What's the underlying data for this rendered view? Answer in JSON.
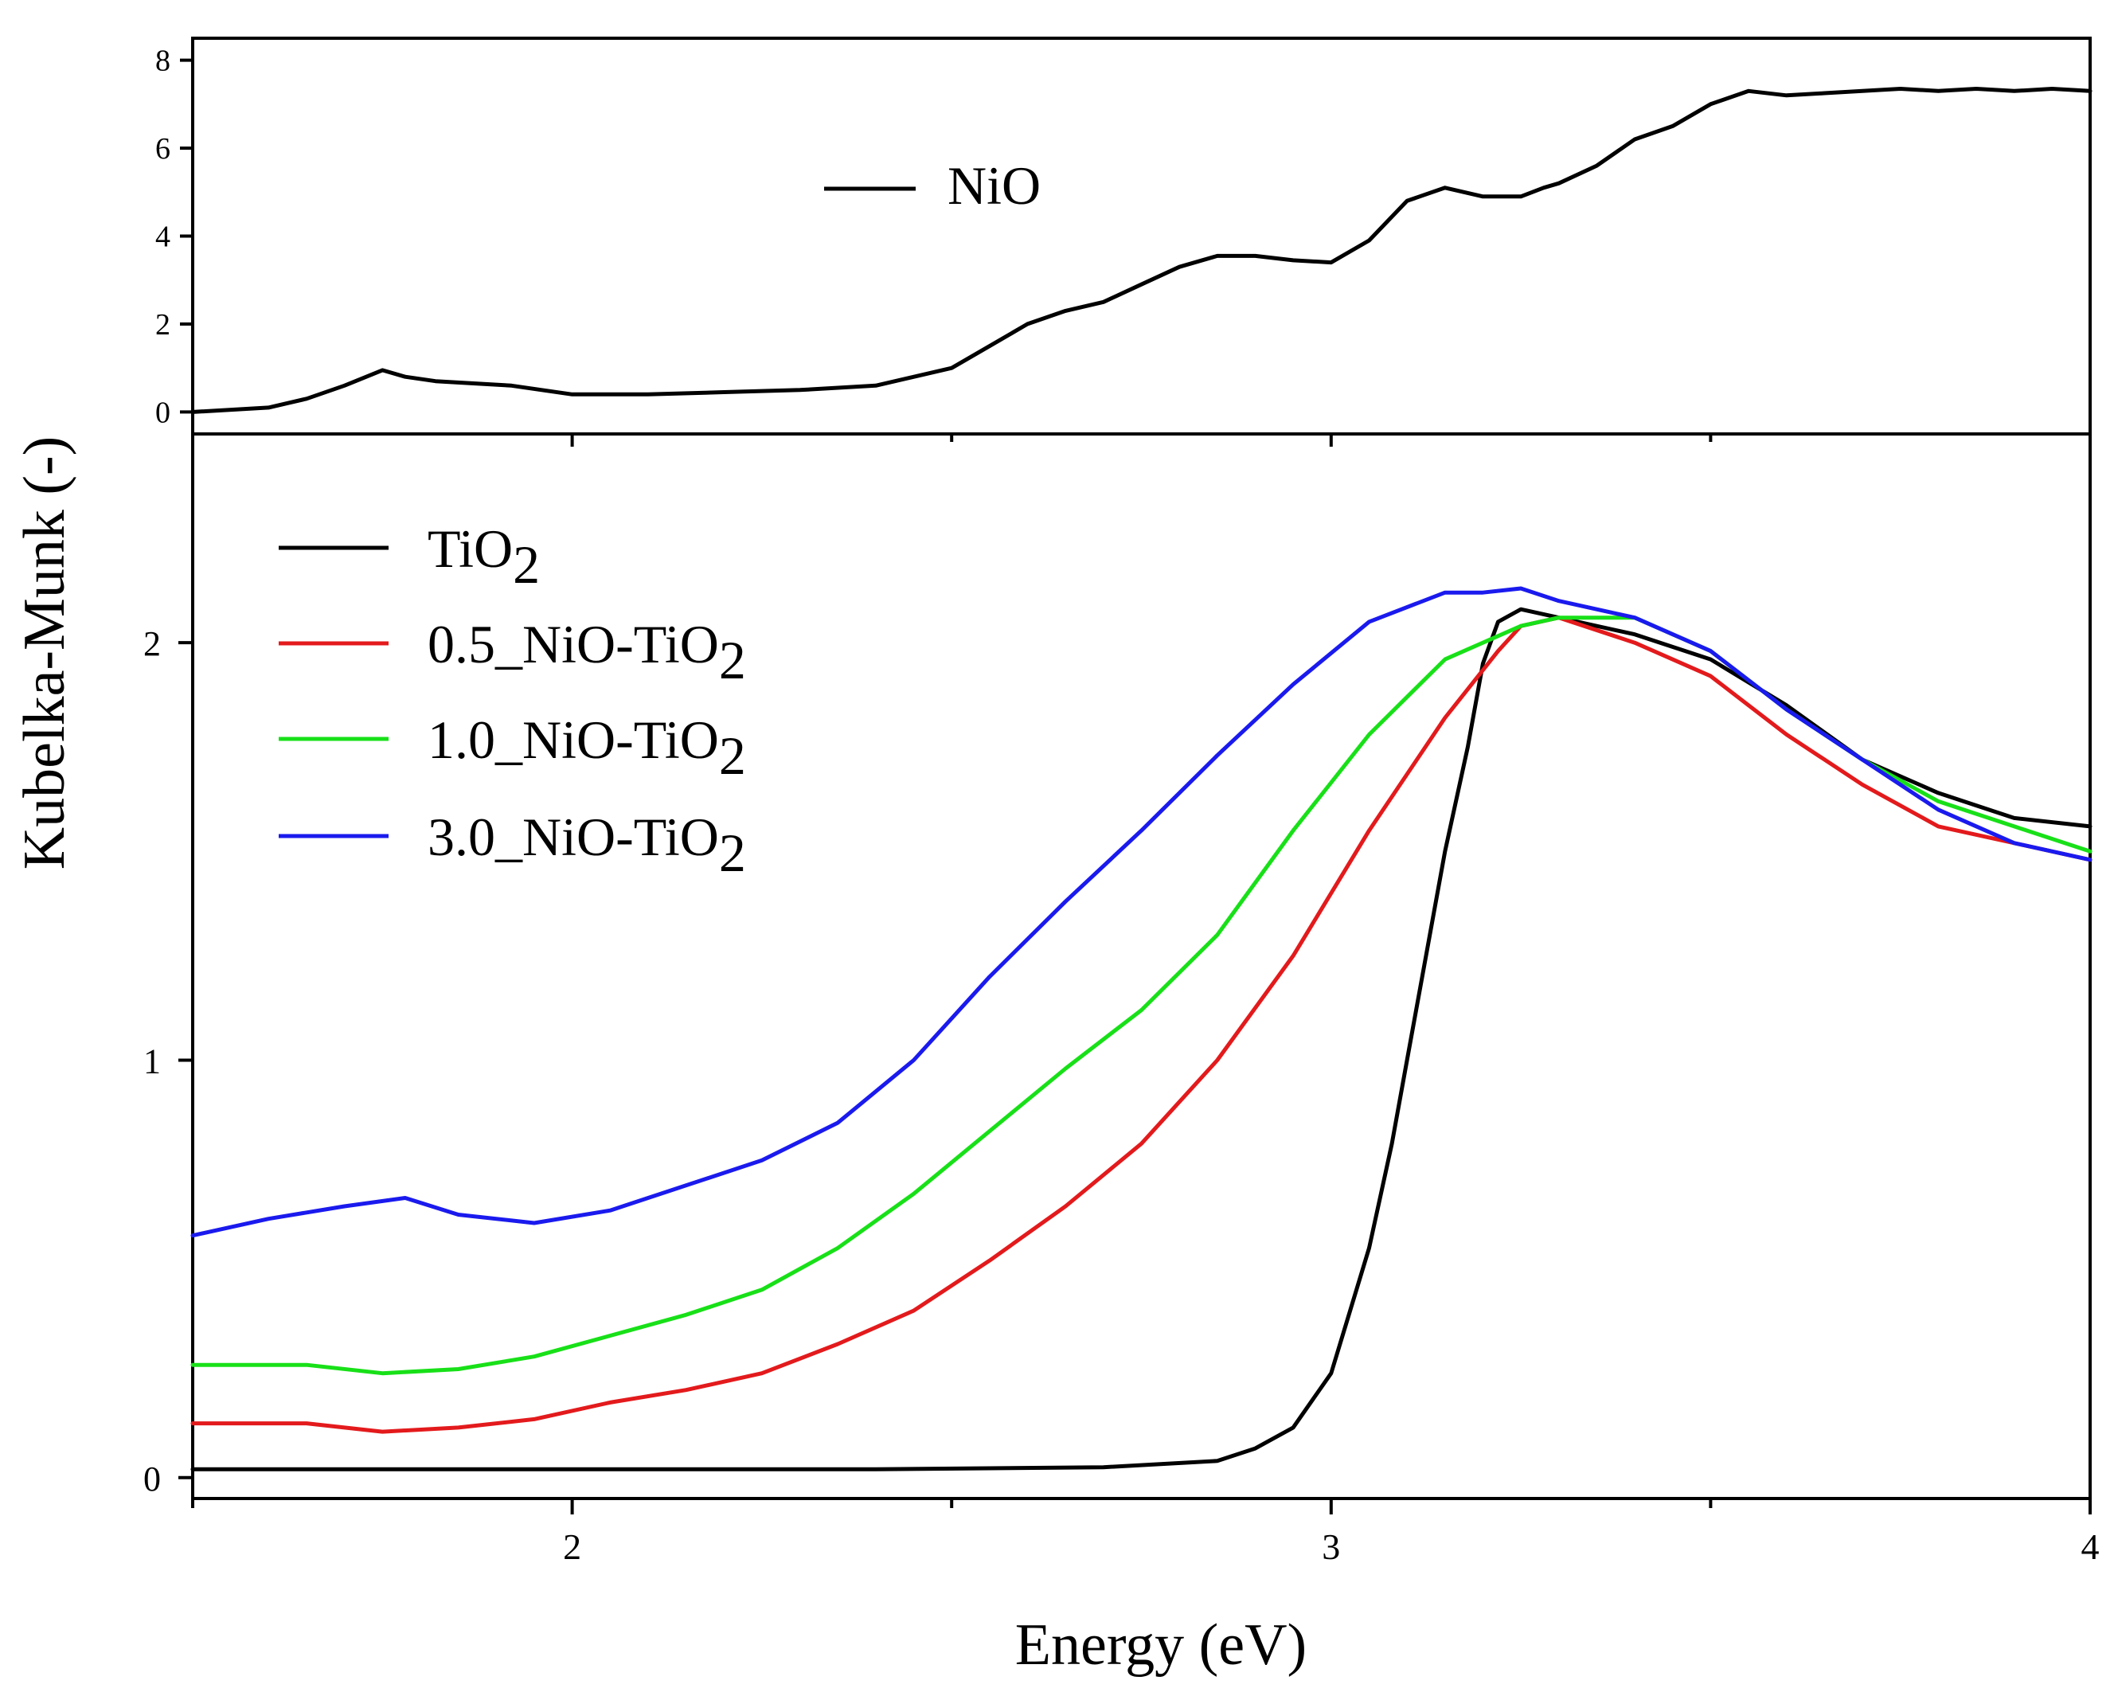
{
  "chart_data": [
    {
      "type": "line",
      "panel": "top",
      "xlim": [
        1.5,
        4.0
      ],
      "ylim": [
        -0.5,
        8.5
      ],
      "yticks": [
        0,
        2,
        4,
        6,
        8
      ],
      "ytick_labels": [
        "0",
        "2",
        "4",
        "6",
        "8"
      ],
      "legend": {
        "position": "top-center",
        "entries": [
          "NiO"
        ]
      },
      "series": [
        {
          "name": "NiO",
          "color": "#000000",
          "x": [
            1.5,
            1.6,
            1.65,
            1.7,
            1.75,
            1.78,
            1.82,
            1.87,
            1.92,
            2.0,
            2.1,
            2.2,
            2.3,
            2.4,
            2.5,
            2.55,
            2.6,
            2.65,
            2.7,
            2.75,
            2.8,
            2.85,
            2.9,
            2.95,
            3.0,
            3.05,
            3.1,
            3.15,
            3.2,
            3.25,
            3.28,
            3.3,
            3.35,
            3.4,
            3.45,
            3.5,
            3.55,
            3.6,
            3.65,
            3.7,
            3.75,
            3.8,
            3.85,
            3.9,
            3.95,
            4.0
          ],
          "y": [
            0.0,
            0.1,
            0.3,
            0.6,
            0.95,
            0.8,
            0.7,
            0.65,
            0.6,
            0.4,
            0.4,
            0.45,
            0.5,
            0.6,
            1.0,
            1.5,
            2.0,
            2.3,
            2.5,
            2.9,
            3.3,
            3.55,
            3.55,
            3.45,
            3.4,
            3.9,
            4.8,
            5.1,
            4.9,
            4.9,
            5.1,
            5.2,
            5.6,
            6.2,
            6.5,
            7.0,
            7.3,
            7.2,
            7.25,
            7.3,
            7.35,
            7.3,
            7.35,
            7.3,
            7.35,
            7.3
          ]
        }
      ]
    },
    {
      "type": "line",
      "panel": "bottom",
      "xlabel": "Energy (eV)",
      "ylabel": "Kubelka-Munk (-)",
      "xlim": [
        1.5,
        4.0
      ],
      "ylim": [
        -0.05,
        2.5
      ],
      "xticks": [
        2,
        3,
        4
      ],
      "xtick_labels": [
        "2",
        "3",
        "4"
      ],
      "yticks": [
        0,
        1,
        2
      ],
      "ytick_labels": [
        "0",
        "1",
        "2"
      ],
      "legend": {
        "position": "top-left",
        "entries": [
          "TiO",
          "0.5_NiO-TiO",
          "1.0_NiO-TiO",
          "3.0_NiO-TiO"
        ],
        "subscript": "2"
      },
      "series": [
        {
          "name": "TiO2",
          "color": "#000000",
          "x": [
            1.5,
            1.8,
            2.1,
            2.4,
            2.7,
            2.85,
            2.9,
            2.95,
            3.0,
            3.05,
            3.08,
            3.1,
            3.12,
            3.15,
            3.18,
            3.2,
            3.22,
            3.25,
            3.3,
            3.4,
            3.5,
            3.6,
            3.7,
            3.8,
            3.9,
            4.0
          ],
          "y": [
            0.02,
            0.02,
            0.02,
            0.02,
            0.025,
            0.04,
            0.07,
            0.12,
            0.25,
            0.55,
            0.8,
            1.0,
            1.2,
            1.5,
            1.75,
            1.95,
            2.05,
            2.08,
            2.06,
            2.02,
            1.96,
            1.85,
            1.72,
            1.64,
            1.58,
            1.56
          ]
        },
        {
          "name": "0.5_NiO-TiO2",
          "color": "#e31a1c",
          "x": [
            1.5,
            1.65,
            1.75,
            1.85,
            1.95,
            2.05,
            2.15,
            2.25,
            2.35,
            2.45,
            2.55,
            2.65,
            2.75,
            2.85,
            2.95,
            3.05,
            3.15,
            3.22,
            3.25,
            3.3,
            3.4,
            3.5,
            3.6,
            3.7,
            3.8,
            3.9,
            4.0
          ],
          "y": [
            0.13,
            0.13,
            0.11,
            0.12,
            0.14,
            0.18,
            0.21,
            0.25,
            0.32,
            0.4,
            0.52,
            0.65,
            0.8,
            1.0,
            1.25,
            1.55,
            1.82,
            1.98,
            2.04,
            2.06,
            2.0,
            1.92,
            1.78,
            1.66,
            1.56,
            1.52,
            1.48
          ]
        },
        {
          "name": "1.0_NiO-TiO2",
          "color": "#18e018",
          "x": [
            1.5,
            1.65,
            1.75,
            1.85,
            1.95,
            2.05,
            2.15,
            2.25,
            2.35,
            2.45,
            2.55,
            2.65,
            2.75,
            2.85,
            2.95,
            3.05,
            3.15,
            3.25,
            3.3,
            3.4,
            3.5,
            3.6,
            3.7,
            3.8,
            3.9,
            4.0
          ],
          "y": [
            0.27,
            0.27,
            0.25,
            0.26,
            0.29,
            0.34,
            0.39,
            0.45,
            0.55,
            0.68,
            0.83,
            0.98,
            1.12,
            1.3,
            1.55,
            1.78,
            1.96,
            2.04,
            2.06,
            2.06,
            1.98,
            1.84,
            1.72,
            1.62,
            1.56,
            1.5
          ]
        },
        {
          "name": "3.0_NiO-TiO2",
          "color": "#1a1aee",
          "x": [
            1.5,
            1.6,
            1.7,
            1.78,
            1.85,
            1.95,
            2.05,
            2.15,
            2.25,
            2.35,
            2.45,
            2.55,
            2.65,
            2.75,
            2.85,
            2.95,
            3.05,
            3.15,
            3.2,
            3.25,
            3.3,
            3.4,
            3.5,
            3.6,
            3.7,
            3.8,
            3.9,
            4.0
          ],
          "y": [
            0.58,
            0.62,
            0.65,
            0.67,
            0.63,
            0.61,
            0.64,
            0.7,
            0.76,
            0.85,
            1.0,
            1.2,
            1.38,
            1.55,
            1.73,
            1.9,
            2.05,
            2.12,
            2.12,
            2.13,
            2.1,
            2.06,
            1.98,
            1.84,
            1.72,
            1.6,
            1.52,
            1.48
          ]
        }
      ]
    }
  ]
}
